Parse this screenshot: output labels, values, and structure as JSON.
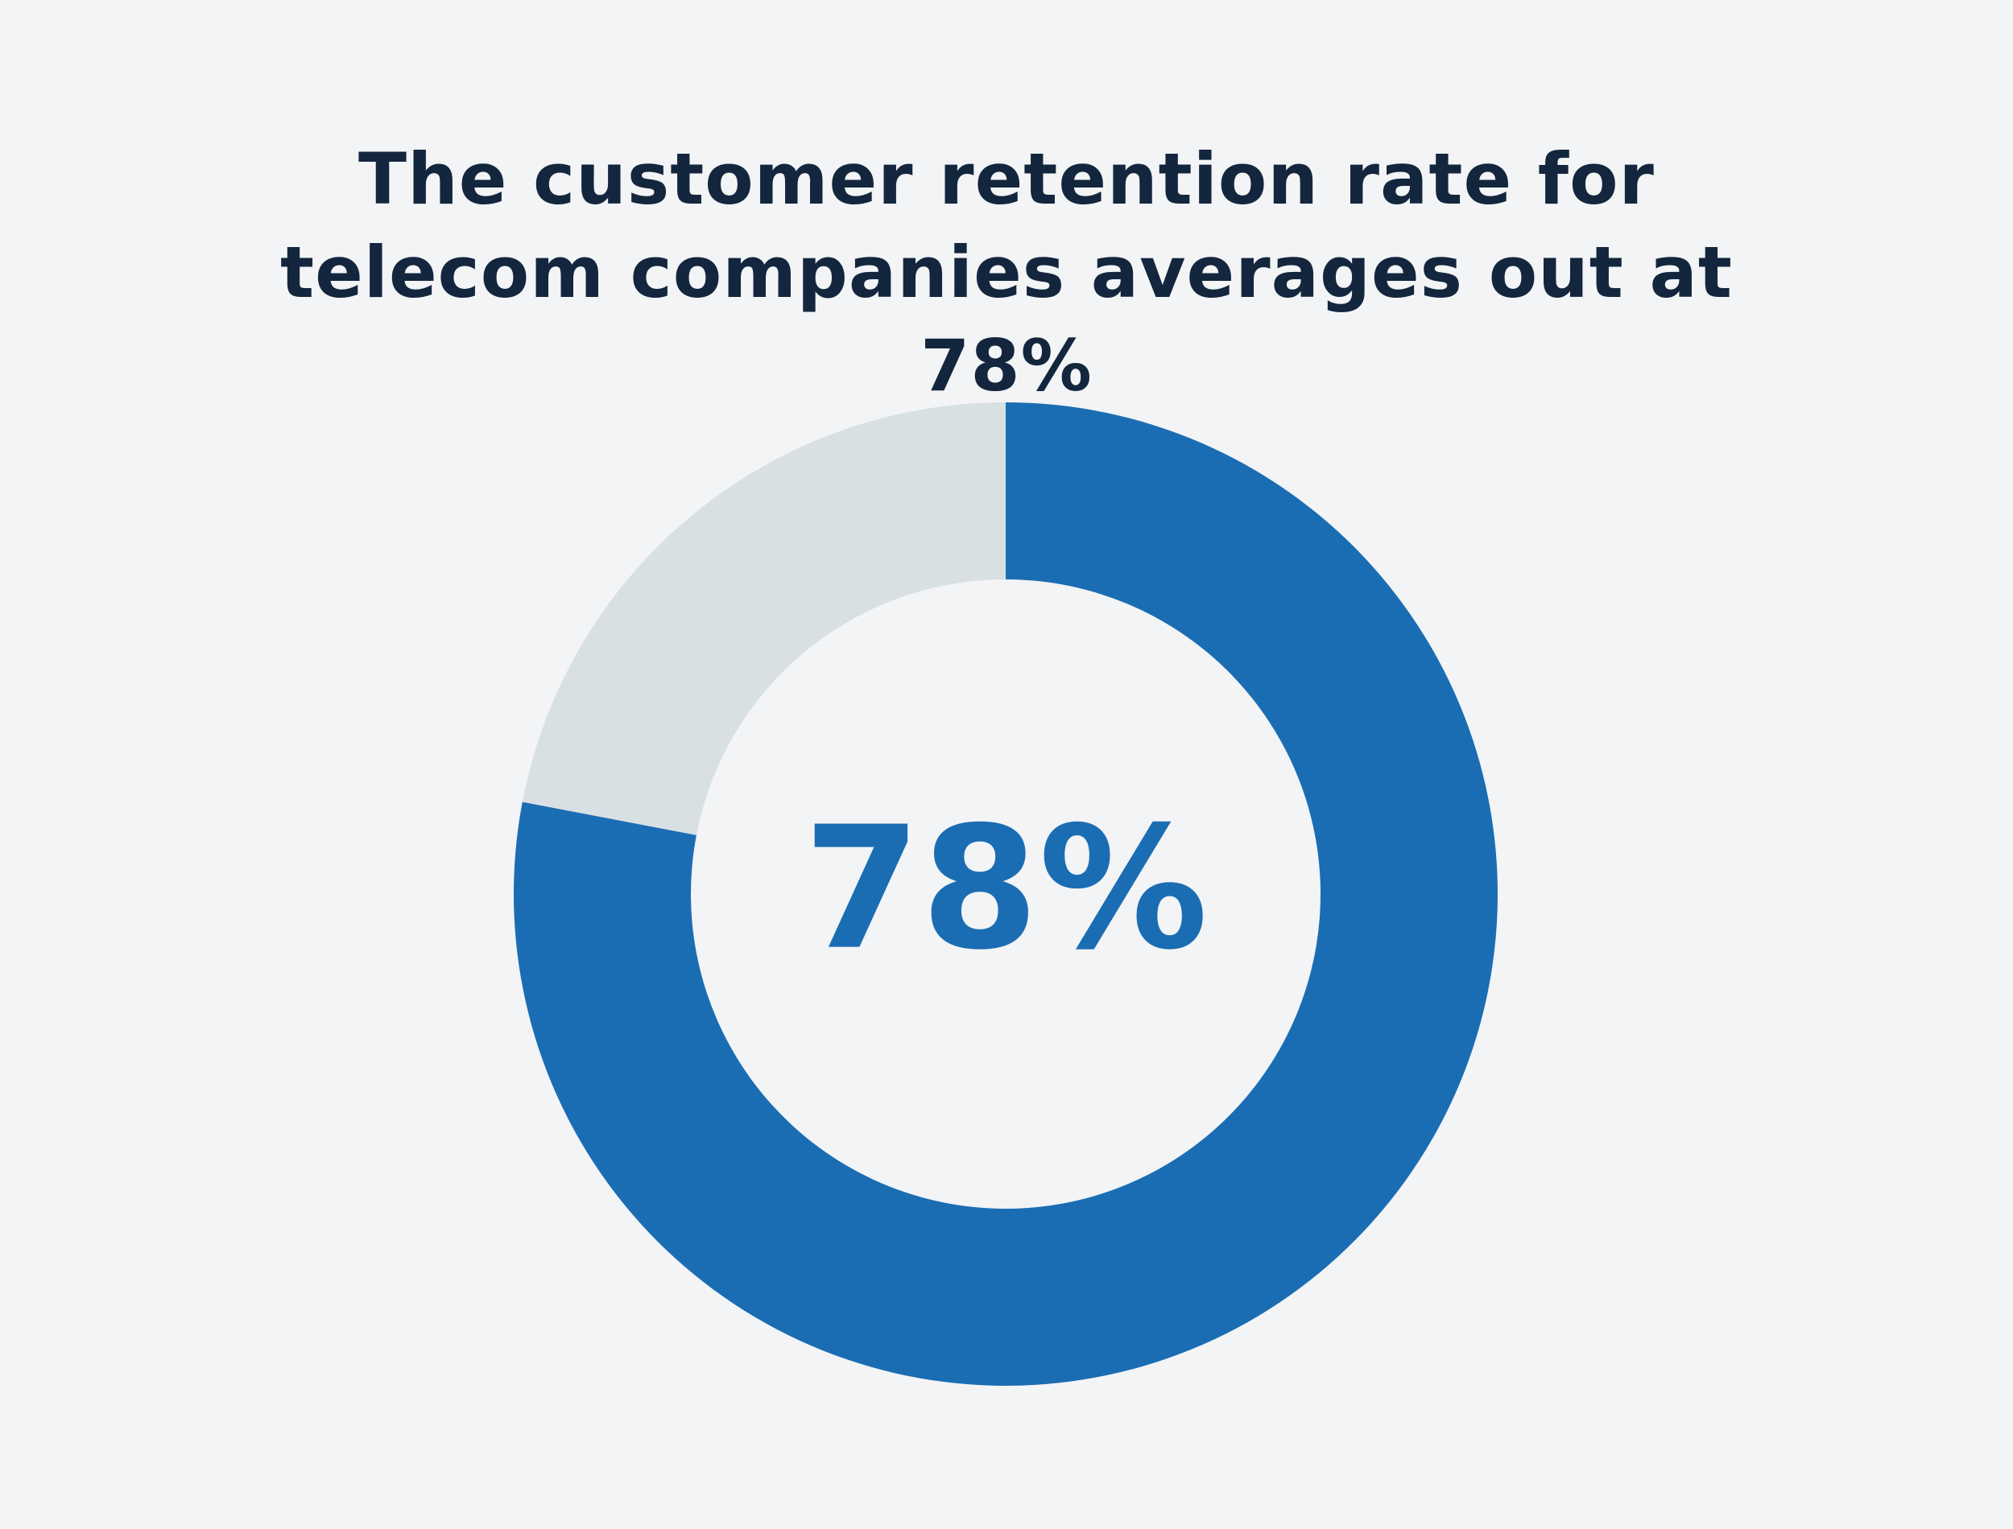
{
  "chart_data": {
    "type": "donut",
    "title": "The customer retention rate for telecom companies averages out at 78%",
    "values": [
      78,
      22
    ],
    "value_labels": [
      "78%",
      null
    ],
    "colors": [
      "#1b6db3",
      "#d9e0e4"
    ]
  }
}
